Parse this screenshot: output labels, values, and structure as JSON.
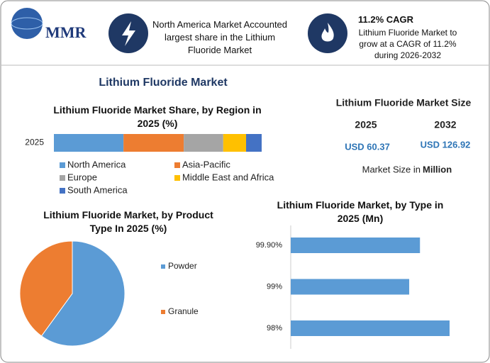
{
  "header": {
    "logo": "MMR",
    "fact1": "North America Market Accounted largest share in the Lithium Fluoride Market",
    "fact2_title": "11.2% CAGR",
    "fact2": "Lithium Fluoride Market to grow at a CAGR of 11.2% during 2026-2032"
  },
  "title": "Lithium Fluoride Market",
  "market_size": {
    "title": "Lithium Fluoride Market Size",
    "years": [
      "2025",
      "2032"
    ],
    "values": [
      "USD 60.37",
      "USD 126.92"
    ],
    "note": "Market Size in",
    "unit": "Million"
  },
  "chart_data": [
    {
      "type": "stacked-bar",
      "title": "Lithium Fluoride Market Share, by Region in 2025 (%)",
      "categories": [
        "2025"
      ],
      "series": [
        {
          "name": "North America",
          "color": "#5b9bd5",
          "values": [
            33.5
          ]
        },
        {
          "name": "Asia-Pacific",
          "color": "#ed7d31",
          "values": [
            29
          ]
        },
        {
          "name": "Europe",
          "color": "#a5a5a5",
          "values": [
            19
          ]
        },
        {
          "name": "Middle East and Africa",
          "color": "#ffc000",
          "values": [
            11
          ]
        },
        {
          "name": "South America",
          "color": "#4472c4",
          "values": [
            7.5
          ]
        }
      ]
    },
    {
      "type": "pie",
      "title": "Lithium Fluoride Market, by Product Type In 2025 (%)",
      "categories": [
        "Powder",
        "Granule"
      ],
      "values": [
        60,
        40
      ],
      "colors": [
        "#5b9bd5",
        "#ed7d31"
      ]
    },
    {
      "type": "hbar",
      "title": "Lithium Fluoride Market, by Type in 2025 (Mn)",
      "categories": [
        "99.90%",
        "99%",
        "98%"
      ],
      "values": [
        19.2,
        17.6,
        23.6
      ],
      "color": "#5b9bd5"
    }
  ]
}
